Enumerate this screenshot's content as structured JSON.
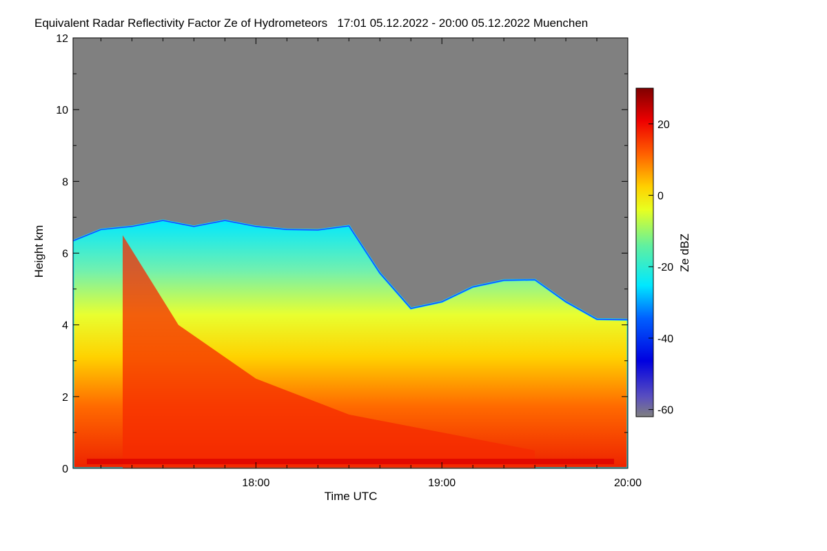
{
  "chart_data": {
    "type": "heatmap",
    "title": "Equivalent Radar Reflectivity Factor Ze of Hydrometeors   17:01 05.12.2022 - 20:00 05.12.2022 Muenchen",
    "xlabel": "Time UTC",
    "ylabel": "Height km",
    "xlim": [
      "17:01",
      "20:00"
    ],
    "xticks": [
      "18:00",
      "19:00",
      "20:00"
    ],
    "ylim": [
      0,
      12
    ],
    "yticks": [
      "0",
      "2",
      "4",
      "6",
      "8",
      "10",
      "12"
    ],
    "colorbar": {
      "label": "Ze dBZ",
      "range": [
        -62,
        30
      ],
      "ticks": [
        "20",
        "0",
        "-20",
        "-40",
        "-60"
      ],
      "colormap": "jet",
      "no_signal_color": "#808080"
    },
    "cloud_top_km": [
      {
        "time": "17:01",
        "height": 6.4
      },
      {
        "time": "17:10",
        "height": 6.6
      },
      {
        "time": "17:20",
        "height": 6.8
      },
      {
        "time": "17:30",
        "height": 6.85
      },
      {
        "time": "17:40",
        "height": 6.8
      },
      {
        "time": "17:50",
        "height": 6.85
      },
      {
        "time": "18:00",
        "height": 6.8
      },
      {
        "time": "18:10",
        "height": 6.6
      },
      {
        "time": "18:20",
        "height": 6.7
      },
      {
        "time": "18:30",
        "height": 6.7
      },
      {
        "time": "18:40",
        "height": 5.5
      },
      {
        "time": "18:50",
        "height": 4.4
      },
      {
        "time": "19:00",
        "height": 4.7
      },
      {
        "time": "19:10",
        "height": 5.0
      },
      {
        "time": "19:20",
        "height": 5.3
      },
      {
        "time": "19:30",
        "height": 5.2
      },
      {
        "time": "19:40",
        "height": 4.7
      },
      {
        "time": "19:50",
        "height": 4.1
      },
      {
        "time": "20:00",
        "height": 4.2
      }
    ],
    "strong_core": [
      {
        "time": "17:17",
        "height_top": 6.5
      },
      {
        "time": "17:35",
        "height_top": 4.0
      },
      {
        "time": "18:00",
        "height_top": 2.5
      },
      {
        "time": "18:30",
        "height_top": 1.5
      },
      {
        "time": "19:00",
        "height_top": 1.0
      },
      {
        "time": "19:30",
        "height_top": 0.5
      }
    ]
  }
}
